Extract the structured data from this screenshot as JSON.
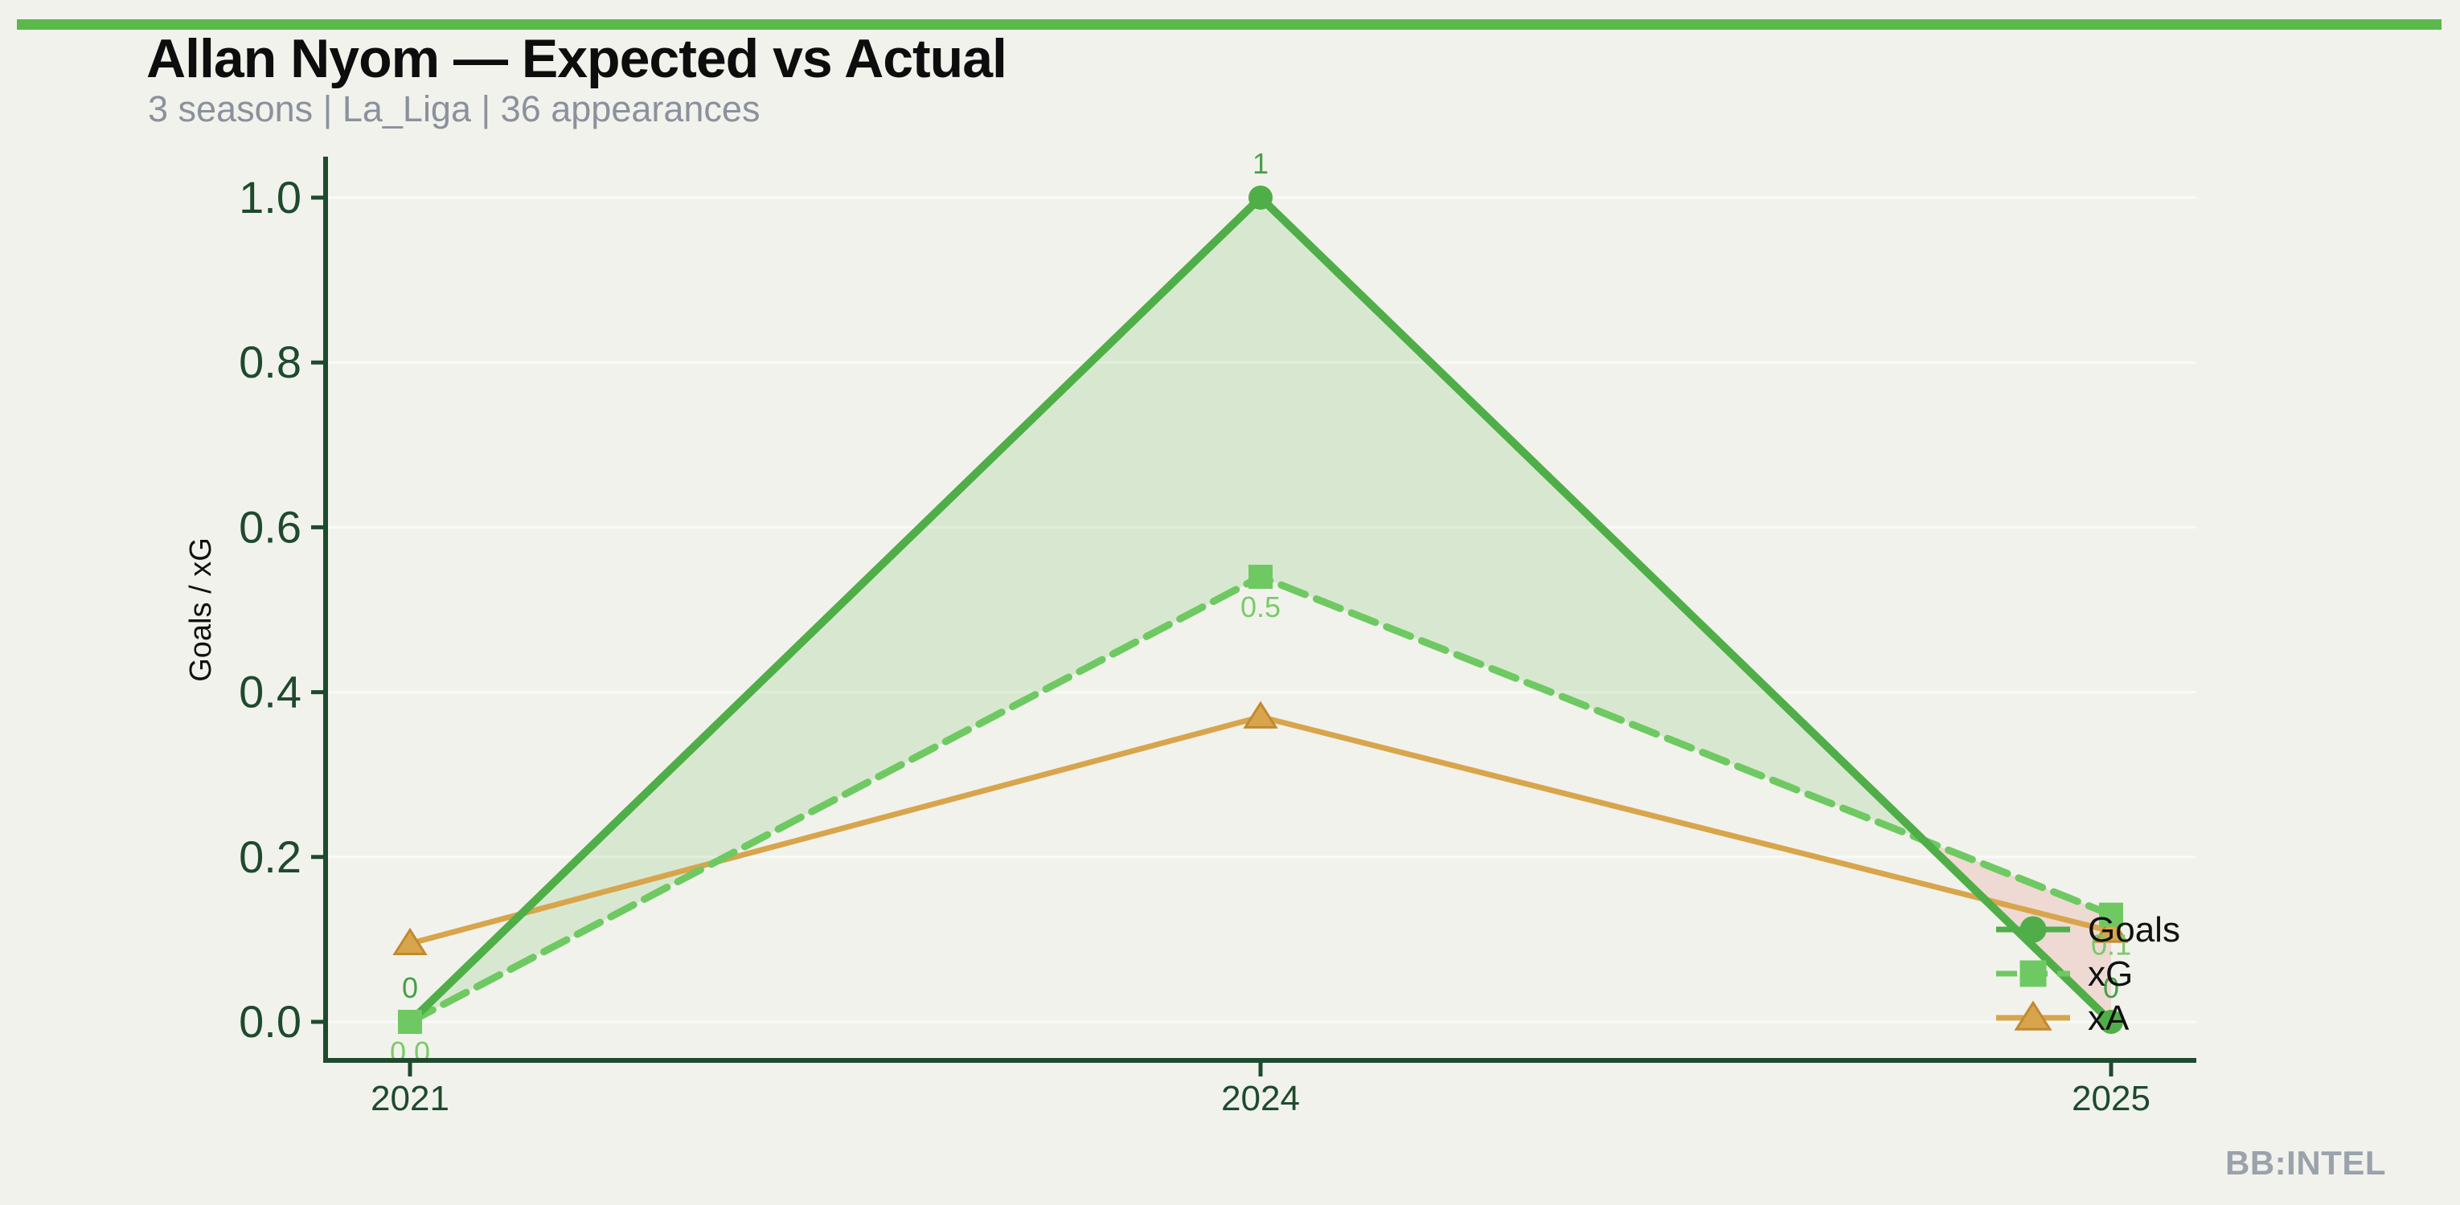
{
  "page": {
    "background_color": "#f2f2ec",
    "accent_color": "#5bb84b",
    "watermark": "BB:INTEL"
  },
  "header": {
    "title": "Allan Nyom — Expected vs Actual",
    "subtitle": "3 seasons | La_Liga | 36 appearances"
  },
  "chart_data": {
    "type": "line",
    "title": "Allan Nyom — Expected vs Actual",
    "categories": [
      "2021",
      "2024",
      "2025"
    ],
    "series": [
      {
        "name": "Goals",
        "values": [
          0,
          1,
          0
        ],
        "point_labels": [
          "0",
          "1",
          "0"
        ],
        "color": "#4fae48",
        "label_color": "#43a146",
        "marker": "circle",
        "line_style": "solid"
      },
      {
        "name": "xG",
        "values": [
          0.0,
          0.54,
          0.13
        ],
        "point_labels": [
          "0.0",
          "0.5",
          "0.1"
        ],
        "color": "#6fc962",
        "label_color": "#7bcb69",
        "marker": "square",
        "line_style": "dashed"
      },
      {
        "name": "xA",
        "values": [
          0.095,
          0.37,
          0.11
        ],
        "point_labels": [
          "",
          "",
          ""
        ],
        "color": "#d8a54c",
        "marker_edge_color": "#c1892f",
        "marker": "triangle",
        "line_style": "solid"
      }
    ],
    "xlabel": "",
    "ylabel": "Goals / xG",
    "yticks": [
      0.0,
      0.2,
      0.4,
      0.6,
      0.8,
      1.0
    ],
    "ylim": [
      0,
      1.0
    ],
    "grid": true,
    "gridline_color": "rgba(255,255,255,0.6)",
    "axis_color": "#1e4a2e",
    "tick_label_color": "#1e4a2e",
    "legend": {
      "position": "lower right",
      "entries": [
        "Goals",
        "xG",
        "xA"
      ],
      "text_color": "#111111"
    },
    "fill_between": {
      "series_pair": [
        "Goals",
        "xG"
      ],
      "above_color": "rgba(100,186,82,0.18)",
      "below_color": "rgba(222,110,96,0.18)"
    }
  }
}
